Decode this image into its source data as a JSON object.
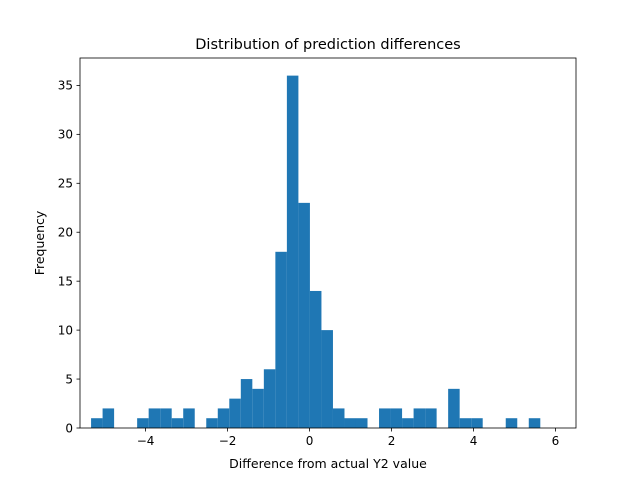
{
  "chart_data": {
    "type": "bar",
    "subtype": "histogram",
    "title": "Distribution of prediction differences",
    "xlabel": "Difference from actual Y2 value",
    "ylabel": "Frequency",
    "xlim": [
      -5.6,
      6.5
    ],
    "ylim": [
      0,
      37.8
    ],
    "bin_width": 0.281,
    "bin_start": -5.33,
    "x_ticks": [
      -4,
      -2,
      0,
      2,
      4,
      6
    ],
    "x_tick_labels": [
      "−4",
      "−2",
      "0",
      "2",
      "4",
      "6"
    ],
    "y_ticks": [
      0,
      5,
      10,
      15,
      20,
      25,
      30,
      35
    ],
    "y_tick_labels": [
      "0",
      "5",
      "10",
      "15",
      "20",
      "25",
      "30",
      "35"
    ],
    "values": [
      1,
      2,
      0,
      0,
      1,
      2,
      2,
      1,
      2,
      0,
      1,
      2,
      3,
      5,
      4,
      6,
      18,
      36,
      23,
      14,
      10,
      2,
      1,
      1,
      0,
      2,
      2,
      1,
      2,
      2,
      0,
      4,
      1,
      1,
      0,
      0,
      1,
      0,
      1
    ],
    "grid": false,
    "legend": "none",
    "bar_color": "#1f77b4"
  }
}
